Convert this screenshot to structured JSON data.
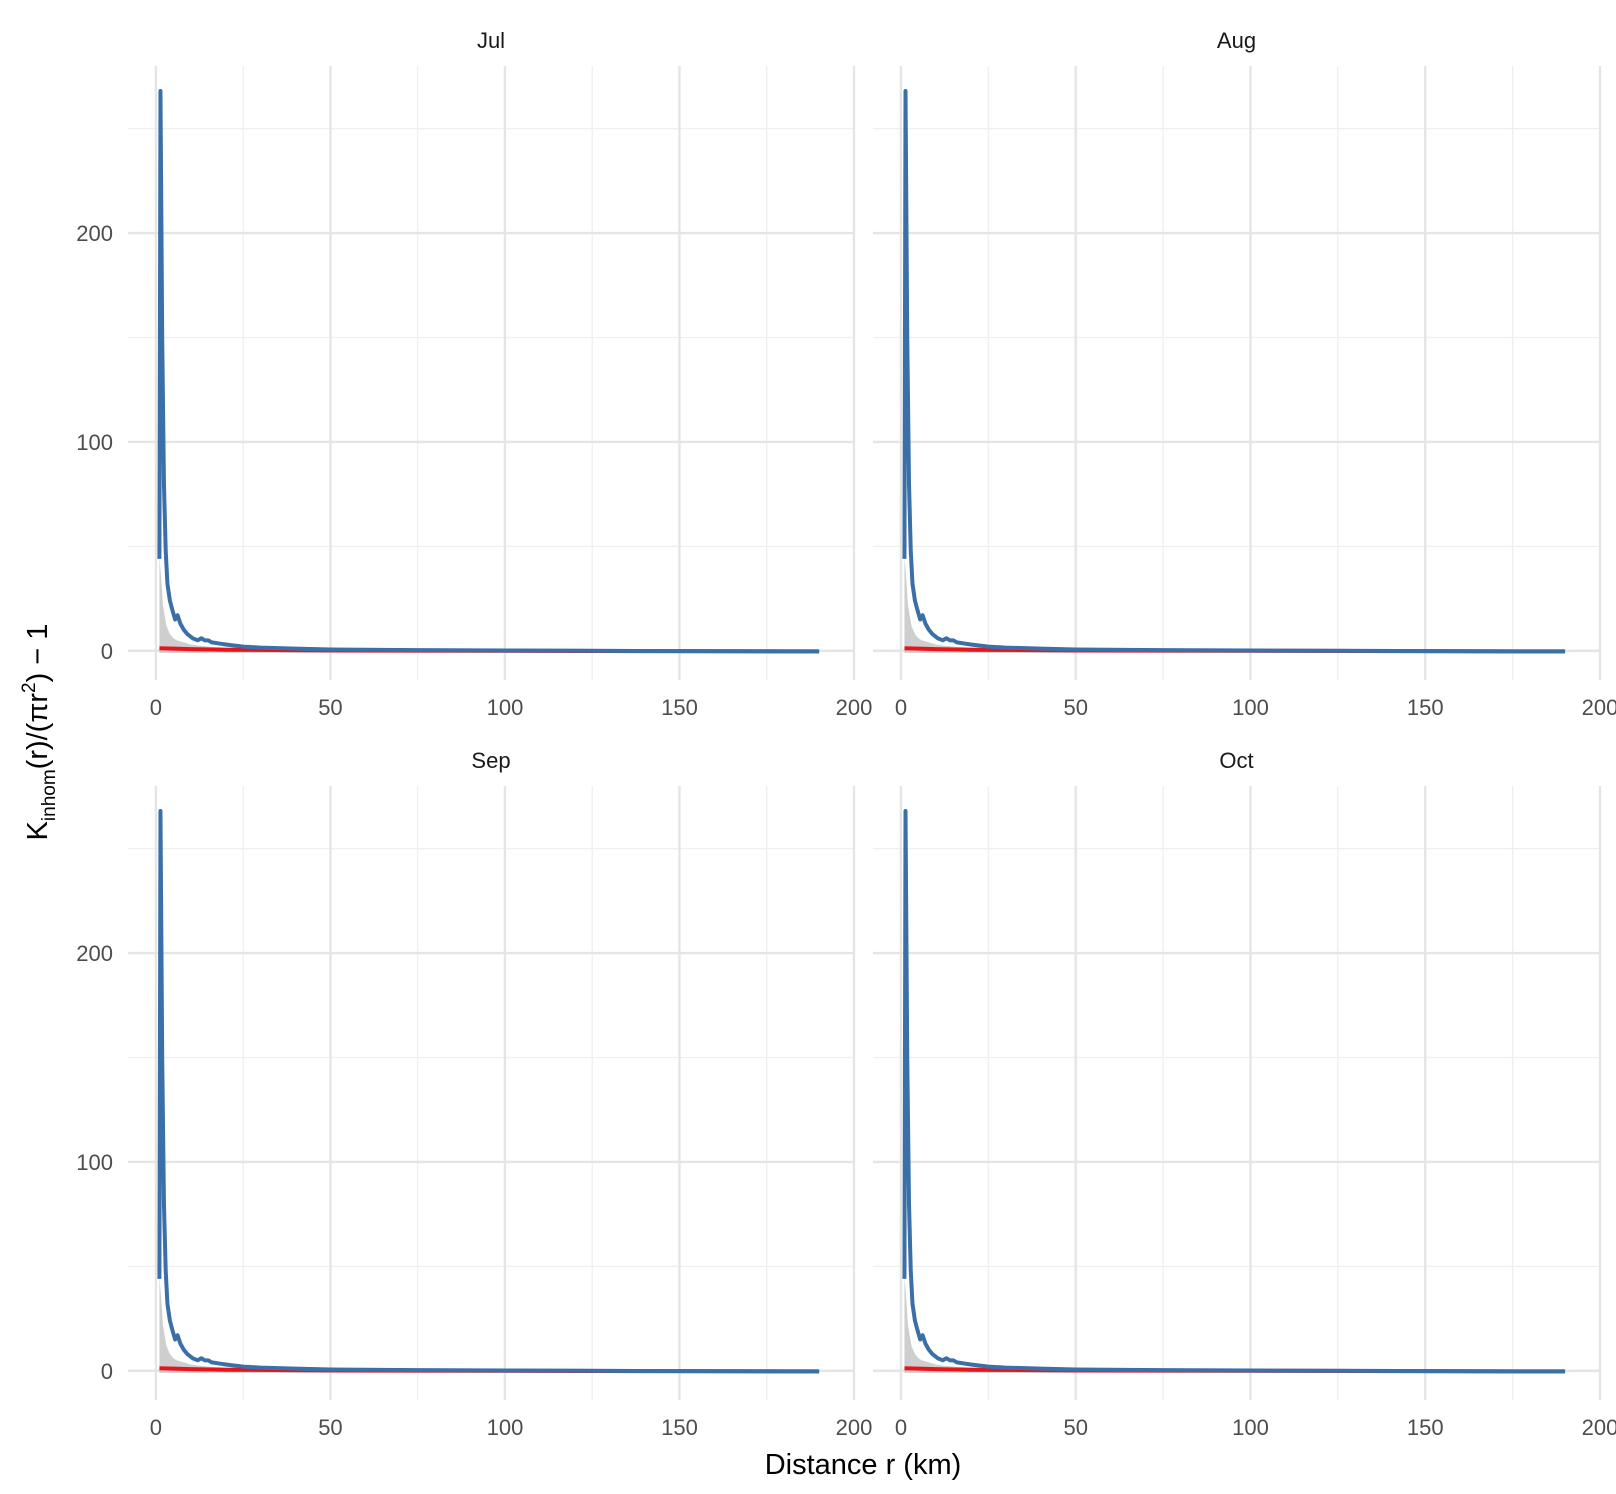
{
  "chart_data": {
    "type": "line",
    "facet_layout": "2x2",
    "panels": [
      "Jul",
      "Aug",
      "Sep",
      "Oct"
    ],
    "xlabel": "Distance r (km)",
    "ylabel": {
      "base": "K",
      "sub": "inhom",
      "text1": "(r)/(πr",
      "sup": "2",
      "text2": ") − 1"
    },
    "xlim": [
      -8,
      200
    ],
    "ylim": [
      -14,
      280
    ],
    "x_ticks": [
      0,
      50,
      100,
      150,
      200
    ],
    "y_ticks": [
      0,
      100,
      200
    ],
    "grid": true,
    "colors": {
      "observed": "#3b6fa8",
      "theoretical": "#e8141b",
      "envelope": "#bdbdbd"
    },
    "series": [
      {
        "role": "observed",
        "x": [
          1,
          1.3,
          1.8,
          2.3,
          2.8,
          3.3,
          4,
          4.8,
          5.5,
          6.2,
          7,
          8,
          9,
          10.5,
          12,
          13,
          14,
          15,
          16,
          18,
          20,
          25,
          30,
          40,
          50,
          75,
          100,
          125,
          150,
          175,
          190
        ],
        "y": [
          44,
          268,
          150,
          80,
          48,
          32,
          24,
          19,
          15,
          17,
          13,
          10,
          8,
          6,
          5,
          6,
          5,
          5,
          4,
          3.5,
          3,
          2,
          1.5,
          1,
          0.6,
          0.3,
          0.1,
          0,
          -0.2,
          -0.3,
          -0.3
        ]
      },
      {
        "role": "theoretical",
        "x": [
          1,
          5,
          10,
          20,
          50,
          100,
          150,
          190
        ],
        "y": [
          1.2,
          1,
          0.8,
          0.5,
          0.2,
          0,
          -0.2,
          -0.3
        ]
      },
      {
        "role": "envelope",
        "x": [
          1,
          1.5,
          2,
          3,
          4,
          5,
          6,
          8,
          10,
          12,
          15,
          20,
          30,
          50,
          100,
          190
        ],
        "upper": [
          45,
          35,
          22,
          12,
          8,
          6,
          5,
          4,
          3,
          2.5,
          2,
          1.5,
          1,
          0.5,
          0.2,
          0
        ],
        "lower": [
          -1,
          -1,
          -1,
          -1,
          -1,
          -1,
          -1,
          -1,
          -1,
          -1,
          -1,
          -1,
          -1,
          -1,
          -1,
          -1
        ]
      }
    ]
  }
}
